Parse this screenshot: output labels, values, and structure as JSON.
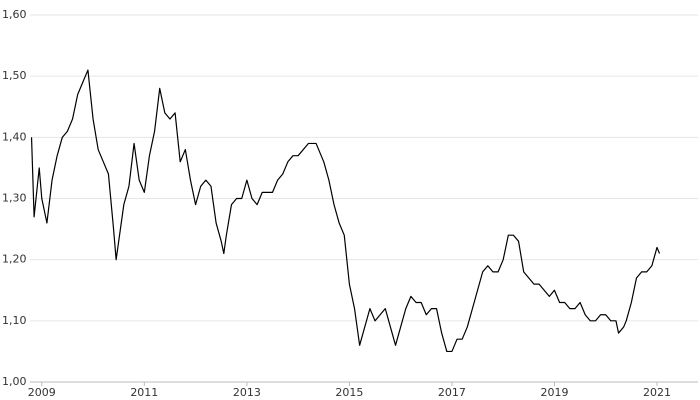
{
  "chart_data": {
    "type": "line",
    "xlim": [
      2008.77,
      2021.8
    ],
    "xticks": [
      2009,
      2011,
      2013,
      2015,
      2017,
      2019,
      2021
    ],
    "ylim": [
      1.0,
      1.6
    ],
    "yticks": [
      {
        "value": 1.0,
        "label": "1,00"
      },
      {
        "value": 1.1,
        "label": "1,10"
      },
      {
        "value": 1.2,
        "label": "1,20"
      },
      {
        "value": 1.3,
        "label": "1,30"
      },
      {
        "value": 1.4,
        "label": "1,40"
      },
      {
        "value": 1.5,
        "label": "1,50"
      },
      {
        "value": 1.6,
        "label": "1,60"
      }
    ],
    "grid": true,
    "color": "#000000",
    "x": [
      2008.8,
      2008.85,
      2008.95,
      2009.0,
      2009.1,
      2009.2,
      2009.3,
      2009.4,
      2009.5,
      2009.6,
      2009.7,
      2009.8,
      2009.9,
      2009.95,
      2010.0,
      2010.1,
      2010.2,
      2010.3,
      2010.4,
      2010.45,
      2010.5,
      2010.6,
      2010.7,
      2010.8,
      2010.9,
      2011.0,
      2011.1,
      2011.2,
      2011.3,
      2011.4,
      2011.5,
      2011.6,
      2011.7,
      2011.8,
      2011.9,
      2012.0,
      2012.1,
      2012.2,
      2012.3,
      2012.4,
      2012.5,
      2012.55,
      2012.6,
      2012.7,
      2012.8,
      2012.9,
      2013.0,
      2013.1,
      2013.2,
      2013.3,
      2013.4,
      2013.5,
      2013.6,
      2013.7,
      2013.8,
      2013.9,
      2014.0,
      2014.2,
      2014.35,
      2014.5,
      2014.6,
      2014.7,
      2014.8,
      2014.9,
      2015.0,
      2015.1,
      2015.2,
      2015.3,
      2015.4,
      2015.5,
      2015.6,
      2015.7,
      2015.8,
      2015.9,
      2016.0,
      2016.1,
      2016.2,
      2016.3,
      2016.4,
      2016.5,
      2016.6,
      2016.7,
      2016.8,
      2016.9,
      2017.0,
      2017.1,
      2017.2,
      2017.3,
      2017.4,
      2017.5,
      2017.6,
      2017.7,
      2017.8,
      2017.9,
      2018.0,
      2018.1,
      2018.2,
      2018.3,
      2018.4,
      2018.5,
      2018.6,
      2018.7,
      2018.8,
      2018.9,
      2019.0,
      2019.1,
      2019.2,
      2019.3,
      2019.4,
      2019.5,
      2019.6,
      2019.7,
      2019.8,
      2019.9,
      2020.0,
      2020.1,
      2020.2,
      2020.25,
      2020.35,
      2020.4,
      2020.5,
      2020.6,
      2020.7,
      2020.8,
      2020.9,
      2021.0,
      2021.05
    ],
    "values": [
      1.4,
      1.27,
      1.35,
      1.3,
      1.26,
      1.33,
      1.37,
      1.4,
      1.41,
      1.43,
      1.47,
      1.49,
      1.51,
      1.47,
      1.43,
      1.38,
      1.36,
      1.34,
      1.25,
      1.2,
      1.23,
      1.29,
      1.32,
      1.39,
      1.33,
      1.31,
      1.37,
      1.41,
      1.48,
      1.44,
      1.43,
      1.44,
      1.36,
      1.38,
      1.33,
      1.29,
      1.32,
      1.33,
      1.32,
      1.26,
      1.23,
      1.21,
      1.24,
      1.29,
      1.3,
      1.3,
      1.33,
      1.3,
      1.29,
      1.31,
      1.31,
      1.31,
      1.33,
      1.34,
      1.36,
      1.37,
      1.37,
      1.39,
      1.39,
      1.36,
      1.33,
      1.29,
      1.26,
      1.24,
      1.16,
      1.12,
      1.06,
      1.09,
      1.12,
      1.1,
      1.11,
      1.12,
      1.09,
      1.06,
      1.09,
      1.12,
      1.14,
      1.13,
      1.13,
      1.11,
      1.12,
      1.12,
      1.08,
      1.05,
      1.05,
      1.07,
      1.07,
      1.09,
      1.12,
      1.15,
      1.18,
      1.19,
      1.18,
      1.18,
      1.2,
      1.24,
      1.24,
      1.23,
      1.18,
      1.17,
      1.16,
      1.16,
      1.15,
      1.14,
      1.15,
      1.13,
      1.13,
      1.12,
      1.12,
      1.13,
      1.11,
      1.1,
      1.1,
      1.11,
      1.11,
      1.1,
      1.1,
      1.08,
      1.09,
      1.1,
      1.13,
      1.17,
      1.18,
      1.18,
      1.19,
      1.22,
      1.21
    ]
  }
}
